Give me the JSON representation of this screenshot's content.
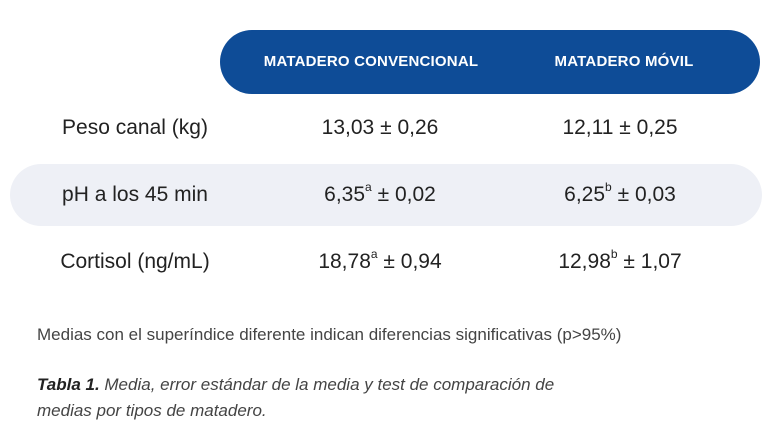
{
  "table": {
    "headers": {
      "conventional": "MATADERO CONVENCIONAL",
      "mobile": "MATADERO  MÓVIL"
    },
    "rows": [
      {
        "label": "Peso canal (kg)",
        "conventional": {
          "value": "13,03",
          "sup": "",
          "error": "± 0,26"
        },
        "mobile": {
          "value": "12,11",
          "sup": "",
          "error": "± 0,25"
        }
      },
      {
        "label": "pH a los 45 min",
        "conventional": {
          "value": "6,35",
          "sup": "a",
          "error": "± 0,02"
        },
        "mobile": {
          "value": "6,25",
          "sup": "b",
          "error": "± 0,03"
        }
      },
      {
        "label": "Cortisol (ng/mL)",
        "conventional": {
          "value": "18,78",
          "sup": "a",
          "error": "± 0,94"
        },
        "mobile": {
          "value": "12,98",
          "sup": "b",
          "error": "± 1,07"
        }
      }
    ]
  },
  "note": "Medias con el superíndice diferente indican diferencias significativas (p>95%)",
  "caption": {
    "label": "Tabla 1.",
    "text": " Media, error estándar de la media y test de comparación de medias por tipos de matadero."
  },
  "colors": {
    "header_band": "#0e4c97",
    "row_band": "#eef0f6"
  }
}
